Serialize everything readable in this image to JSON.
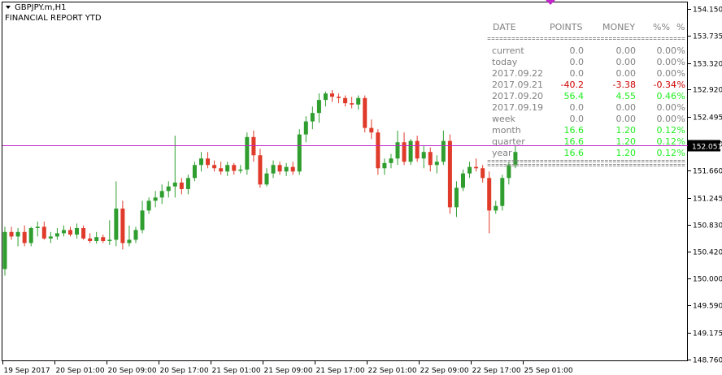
{
  "header": {
    "symbol": "GBPJPY.m,H1",
    "indicator": "FINANCIAL REPORT YTD"
  },
  "colors": {
    "bull": "#2f9e2f",
    "bear": "#e03a2a",
    "hline": "#c026c9",
    "report_gray": "#808080",
    "report_red": "#cc0000",
    "report_green": "#22ee22",
    "price_label_bg": "#000000"
  },
  "report": {
    "headers": [
      "DATE",
      "POINTS",
      "MONEY",
      "%%",
      "%"
    ],
    "separator": "=================================================",
    "rows": [
      {
        "label": "current",
        "points": "0.0",
        "money": "0.00",
        "pct": "0.00",
        "unit": "%",
        "status": "neutral"
      },
      {
        "label": "today",
        "points": "0.0",
        "money": "0.00",
        "pct": "0.00",
        "unit": "%",
        "status": "neutral"
      },
      {
        "label": "2017.09.22",
        "points": "0.0",
        "money": "0.00",
        "pct": "0.00",
        "unit": "%",
        "status": "neutral"
      },
      {
        "label": "2017.09.21",
        "points": "-40.2",
        "money": "-3.38",
        "pct": "-0.34",
        "unit": "%",
        "status": "loss"
      },
      {
        "label": "2017.09.20",
        "points": "56.4",
        "money": "4.55",
        "pct": "0.46",
        "unit": "%",
        "status": "profit"
      },
      {
        "label": "2017.09.19",
        "points": "0.0",
        "money": "0.00",
        "pct": "0.00",
        "unit": "%",
        "status": "neutral"
      },
      {
        "label": "week",
        "points": "0.0",
        "money": "0.00",
        "pct": "0.00",
        "unit": "%",
        "status": "neutral"
      },
      {
        "label": "month",
        "points": "16.6",
        "money": "1.20",
        "pct": "0.12",
        "unit": "%",
        "status": "profit"
      },
      {
        "label": "quarter",
        "points": "16.6",
        "money": "1.20",
        "pct": "0.12",
        "unit": "%",
        "status": "profit"
      },
      {
        "label": "year",
        "points": "16.6",
        "money": "1.20",
        "pct": "0.12",
        "unit": "%",
        "status": "profit"
      }
    ],
    "footer_separator": "================================================="
  },
  "chart_data": {
    "type": "candlestick",
    "symbol": "GBPJPY.m",
    "timeframe": "H1",
    "ylim": [
      148.745,
      154.25
    ],
    "y_ticks": [
      "154.150",
      "153.735",
      "153.320",
      "152.920",
      "152.495",
      "152.080",
      "151.660",
      "151.245",
      "150.830",
      "150.420",
      "150.000",
      "149.590",
      "149.175",
      "148.760"
    ],
    "x_ticks": [
      "19 Sep 2017",
      "20 Sep 01:00",
      "20 Sep 09:00",
      "20 Sep 17:00",
      "21 Sep 01:00",
      "21 Sep 09:00",
      "21 Sep 17:00",
      "22 Sep 01:00",
      "22 Sep 09:00",
      "22 Sep 17:00",
      "25 Sep 01:00"
    ],
    "current_price": "152.051",
    "horizontal_line": 152.051,
    "candles": [
      {
        "o": 150.15,
        "h": 150.8,
        "l": 150.05,
        "c": 150.72
      },
      {
        "o": 150.72,
        "h": 150.8,
        "l": 150.6,
        "c": 150.65
      },
      {
        "o": 150.65,
        "h": 150.78,
        "l": 150.5,
        "c": 150.72
      },
      {
        "o": 150.72,
        "h": 150.82,
        "l": 150.5,
        "c": 150.55
      },
      {
        "o": 150.55,
        "h": 150.8,
        "l": 150.5,
        "c": 150.78
      },
      {
        "o": 150.78,
        "h": 150.88,
        "l": 150.65,
        "c": 150.8
      },
      {
        "o": 150.8,
        "h": 150.88,
        "l": 150.6,
        "c": 150.62
      },
      {
        "o": 150.62,
        "h": 150.72,
        "l": 150.55,
        "c": 150.65
      },
      {
        "o": 150.65,
        "h": 150.78,
        "l": 150.6,
        "c": 150.7
      },
      {
        "o": 150.7,
        "h": 150.82,
        "l": 150.65,
        "c": 150.75
      },
      {
        "o": 150.75,
        "h": 150.8,
        "l": 150.65,
        "c": 150.68
      },
      {
        "o": 150.68,
        "h": 150.85,
        "l": 150.62,
        "c": 150.78
      },
      {
        "o": 150.78,
        "h": 150.82,
        "l": 150.6,
        "c": 150.62
      },
      {
        "o": 150.62,
        "h": 150.7,
        "l": 150.55,
        "c": 150.58
      },
      {
        "o": 150.58,
        "h": 150.72,
        "l": 150.54,
        "c": 150.64
      },
      {
        "o": 150.64,
        "h": 150.68,
        "l": 150.55,
        "c": 150.58
      },
      {
        "o": 150.58,
        "h": 150.9,
        "l": 150.52,
        "c": 150.6
      },
      {
        "o": 150.6,
        "h": 151.5,
        "l": 150.5,
        "c": 151.08
      },
      {
        "o": 151.08,
        "h": 151.2,
        "l": 150.45,
        "c": 150.55
      },
      {
        "o": 150.55,
        "h": 150.82,
        "l": 150.5,
        "c": 150.6
      },
      {
        "o": 150.6,
        "h": 150.8,
        "l": 150.55,
        "c": 150.75
      },
      {
        "o": 150.75,
        "h": 151.2,
        "l": 150.7,
        "c": 151.05
      },
      {
        "o": 151.05,
        "h": 151.25,
        "l": 151.0,
        "c": 151.2
      },
      {
        "o": 151.2,
        "h": 151.35,
        "l": 151.1,
        "c": 151.25
      },
      {
        "o": 151.25,
        "h": 151.45,
        "l": 151.15,
        "c": 151.35
      },
      {
        "o": 151.35,
        "h": 151.5,
        "l": 151.25,
        "c": 151.42
      },
      {
        "o": 151.42,
        "h": 152.2,
        "l": 151.25,
        "c": 151.48
      },
      {
        "o": 151.48,
        "h": 151.55,
        "l": 151.3,
        "c": 151.38
      },
      {
        "o": 151.38,
        "h": 151.6,
        "l": 151.3,
        "c": 151.55
      },
      {
        "o": 151.55,
        "h": 151.8,
        "l": 151.5,
        "c": 151.75
      },
      {
        "o": 151.75,
        "h": 151.95,
        "l": 151.65,
        "c": 151.85
      },
      {
        "o": 151.85,
        "h": 151.95,
        "l": 151.7,
        "c": 151.75
      },
      {
        "o": 151.75,
        "h": 151.82,
        "l": 151.65,
        "c": 151.7
      },
      {
        "o": 151.7,
        "h": 151.8,
        "l": 151.6,
        "c": 151.65
      },
      {
        "o": 151.65,
        "h": 151.8,
        "l": 151.58,
        "c": 151.75
      },
      {
        "o": 151.75,
        "h": 151.78,
        "l": 151.6,
        "c": 151.66
      },
      {
        "o": 151.66,
        "h": 151.75,
        "l": 151.62,
        "c": 151.68
      },
      {
        "o": 151.68,
        "h": 152.25,
        "l": 151.6,
        "c": 152.18
      },
      {
        "o": 152.18,
        "h": 152.28,
        "l": 151.8,
        "c": 151.9
      },
      {
        "o": 151.9,
        "h": 152.0,
        "l": 151.4,
        "c": 151.45
      },
      {
        "o": 151.45,
        "h": 151.7,
        "l": 151.42,
        "c": 151.62
      },
      {
        "o": 151.62,
        "h": 151.82,
        "l": 151.55,
        "c": 151.75
      },
      {
        "o": 151.75,
        "h": 151.8,
        "l": 151.6,
        "c": 151.65
      },
      {
        "o": 151.65,
        "h": 151.78,
        "l": 151.58,
        "c": 151.72
      },
      {
        "o": 151.72,
        "h": 151.8,
        "l": 151.6,
        "c": 151.65
      },
      {
        "o": 151.65,
        "h": 152.3,
        "l": 151.6,
        "c": 152.22
      },
      {
        "o": 152.22,
        "h": 152.5,
        "l": 152.1,
        "c": 152.42
      },
      {
        "o": 152.42,
        "h": 152.65,
        "l": 152.3,
        "c": 152.55
      },
      {
        "o": 152.55,
        "h": 152.85,
        "l": 152.4,
        "c": 152.75
      },
      {
        "o": 152.75,
        "h": 152.88,
        "l": 152.65,
        "c": 152.85
      },
      {
        "o": 152.85,
        "h": 152.9,
        "l": 152.72,
        "c": 152.8
      },
      {
        "o": 152.8,
        "h": 152.85,
        "l": 152.7,
        "c": 152.78
      },
      {
        "o": 152.78,
        "h": 152.82,
        "l": 152.65,
        "c": 152.7
      },
      {
        "o": 152.7,
        "h": 152.8,
        "l": 152.62,
        "c": 152.68
      },
      {
        "o": 152.68,
        "h": 152.82,
        "l": 152.6,
        "c": 152.78
      },
      {
        "o": 152.78,
        "h": 152.82,
        "l": 152.25,
        "c": 152.32
      },
      {
        "o": 152.32,
        "h": 152.45,
        "l": 152.15,
        "c": 152.25
      },
      {
        "o": 152.25,
        "h": 152.3,
        "l": 151.6,
        "c": 151.7
      },
      {
        "o": 151.7,
        "h": 151.85,
        "l": 151.6,
        "c": 151.78
      },
      {
        "o": 151.78,
        "h": 151.92,
        "l": 151.7,
        "c": 151.85
      },
      {
        "o": 151.85,
        "h": 152.28,
        "l": 151.75,
        "c": 152.1
      },
      {
        "o": 152.1,
        "h": 152.25,
        "l": 151.75,
        "c": 151.8
      },
      {
        "o": 151.8,
        "h": 152.15,
        "l": 151.75,
        "c": 152.12
      },
      {
        "o": 152.12,
        "h": 152.2,
        "l": 151.8,
        "c": 151.85
      },
      {
        "o": 151.85,
        "h": 152.05,
        "l": 151.7,
        "c": 151.95
      },
      {
        "o": 151.95,
        "h": 152.02,
        "l": 151.65,
        "c": 151.75
      },
      {
        "o": 151.75,
        "h": 151.9,
        "l": 151.62,
        "c": 151.8
      },
      {
        "o": 151.8,
        "h": 152.28,
        "l": 151.75,
        "c": 152.12
      },
      {
        "o": 152.12,
        "h": 152.22,
        "l": 151.0,
        "c": 151.1
      },
      {
        "o": 151.1,
        "h": 151.5,
        "l": 150.95,
        "c": 151.4
      },
      {
        "o": 151.4,
        "h": 151.68,
        "l": 151.35,
        "c": 151.62
      },
      {
        "o": 151.62,
        "h": 151.8,
        "l": 151.55,
        "c": 151.72
      },
      {
        "o": 151.72,
        "h": 151.85,
        "l": 151.65,
        "c": 151.7
      },
      {
        "o": 151.7,
        "h": 151.75,
        "l": 151.48,
        "c": 151.55
      },
      {
        "o": 151.55,
        "h": 151.65,
        "l": 150.7,
        "c": 151.05
      },
      {
        "o": 151.05,
        "h": 151.2,
        "l": 151.0,
        "c": 151.12
      },
      {
        "o": 151.12,
        "h": 151.6,
        "l": 151.05,
        "c": 151.55
      },
      {
        "o": 151.55,
        "h": 151.8,
        "l": 151.45,
        "c": 151.75
      },
      {
        "o": 151.75,
        "h": 152.05,
        "l": 151.7,
        "c": 151.95
      }
    ]
  }
}
